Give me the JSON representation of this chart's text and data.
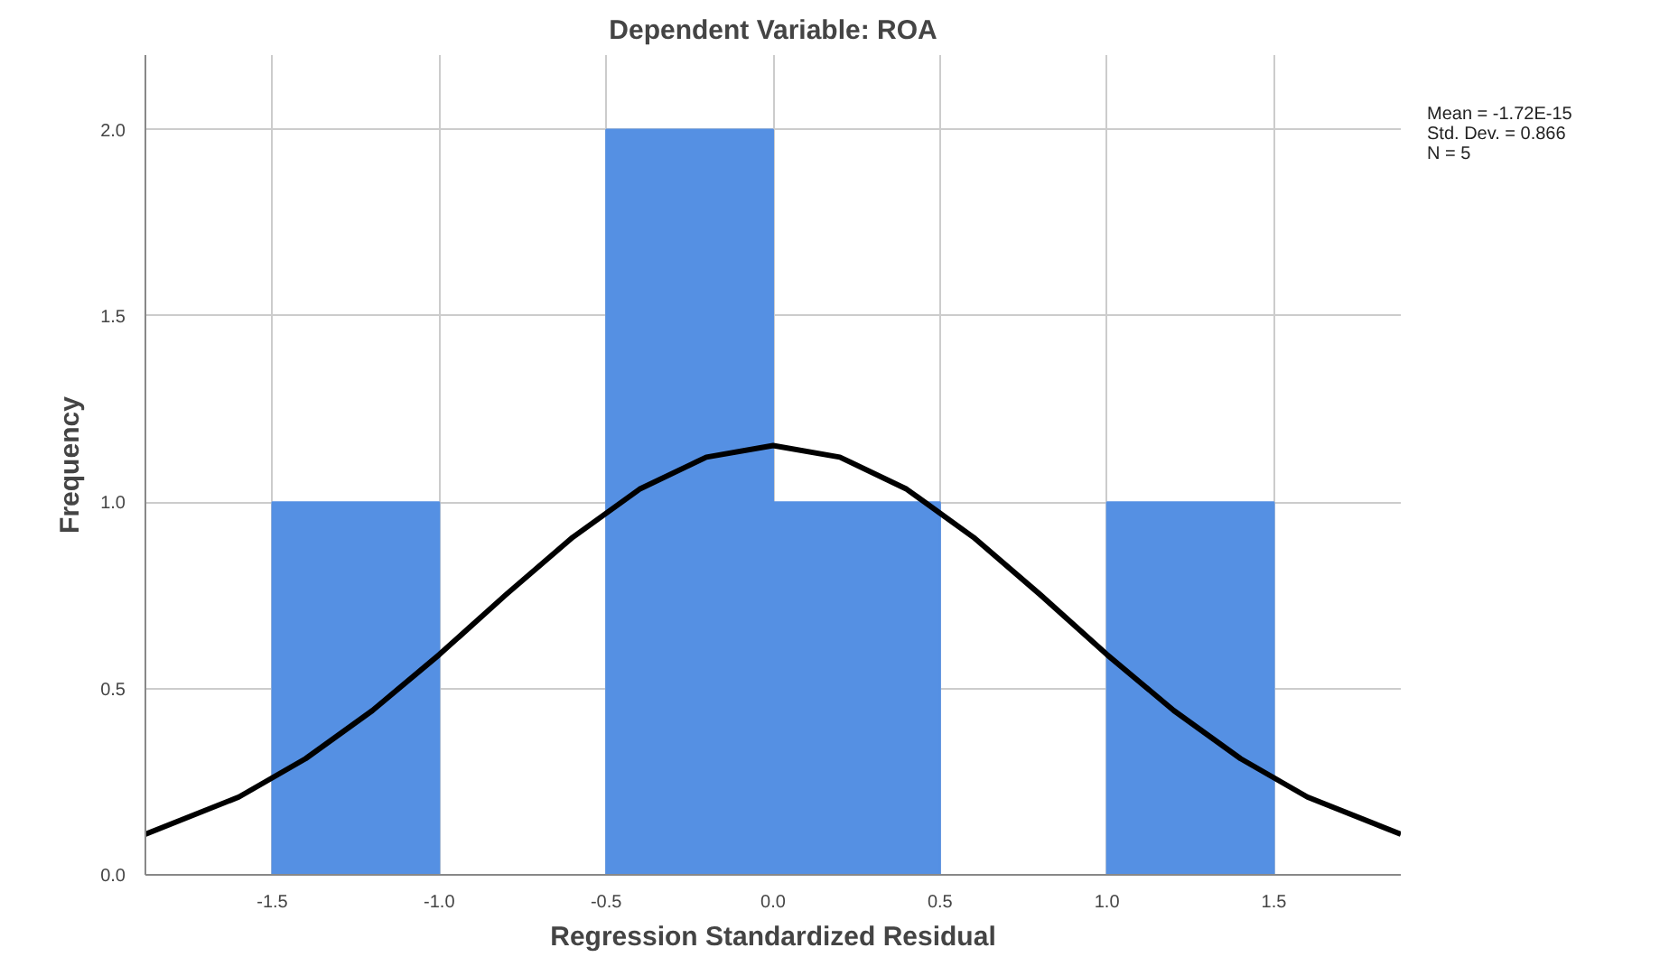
{
  "chart_data": {
    "type": "histogram",
    "title": "Dependent Variable: ROA",
    "xlabel": "Regression Standardized Residual",
    "ylabel": "Frequency",
    "bins": [
      -1.5,
      -1.0,
      -0.5,
      0.0,
      0.5,
      1.0,
      1.5
    ],
    "values": [
      1,
      0,
      2,
      1,
      0,
      1
    ],
    "color": "#5590e3",
    "series": [
      {
        "type": "line",
        "color": "#000000",
        "x": [
          -1.88,
          -1.6,
          -1.4,
          -1.2,
          -1.0,
          -0.8,
          -0.6,
          -0.4,
          -0.2,
          0.0,
          0.2,
          0.4,
          0.6,
          0.8,
          1.0,
          1.2,
          1.4,
          1.6,
          1.88
        ],
        "values": [
          0.109,
          0.209,
          0.312,
          0.441,
          0.591,
          0.752,
          0.906,
          1.035,
          1.121,
          1.152,
          1.121,
          1.035,
          0.906,
          0.752,
          0.591,
          0.441,
          0.312,
          0.209,
          0.109
        ]
      }
    ],
    "xlim": [
      -1.88,
      1.88
    ],
    "ylim": [
      0,
      2.2
    ],
    "xticks": [
      {
        "value": -1.5,
        "label": "-1.5"
      },
      {
        "value": -1.0,
        "label": "-1.0"
      },
      {
        "value": -0.5,
        "label": "-0.5"
      },
      {
        "value": 0.0,
        "label": "0.0"
      },
      {
        "value": 0.5,
        "label": "0.5"
      },
      {
        "value": 1.0,
        "label": "1.0"
      },
      {
        "value": 1.5,
        "label": "1.5"
      }
    ],
    "yticks": [
      {
        "value": 0.0,
        "label": "0.0"
      },
      {
        "value": 0.5,
        "label": "0.5"
      },
      {
        "value": 1.0,
        "label": "1.0"
      },
      {
        "value": 1.5,
        "label": "1.5"
      },
      {
        "value": 2.0,
        "label": "2.0"
      }
    ],
    "grid": true,
    "annotations": [
      "Mean = -1.72E-15",
      "Std. Dev. = 0.866",
      "N = 5"
    ]
  }
}
